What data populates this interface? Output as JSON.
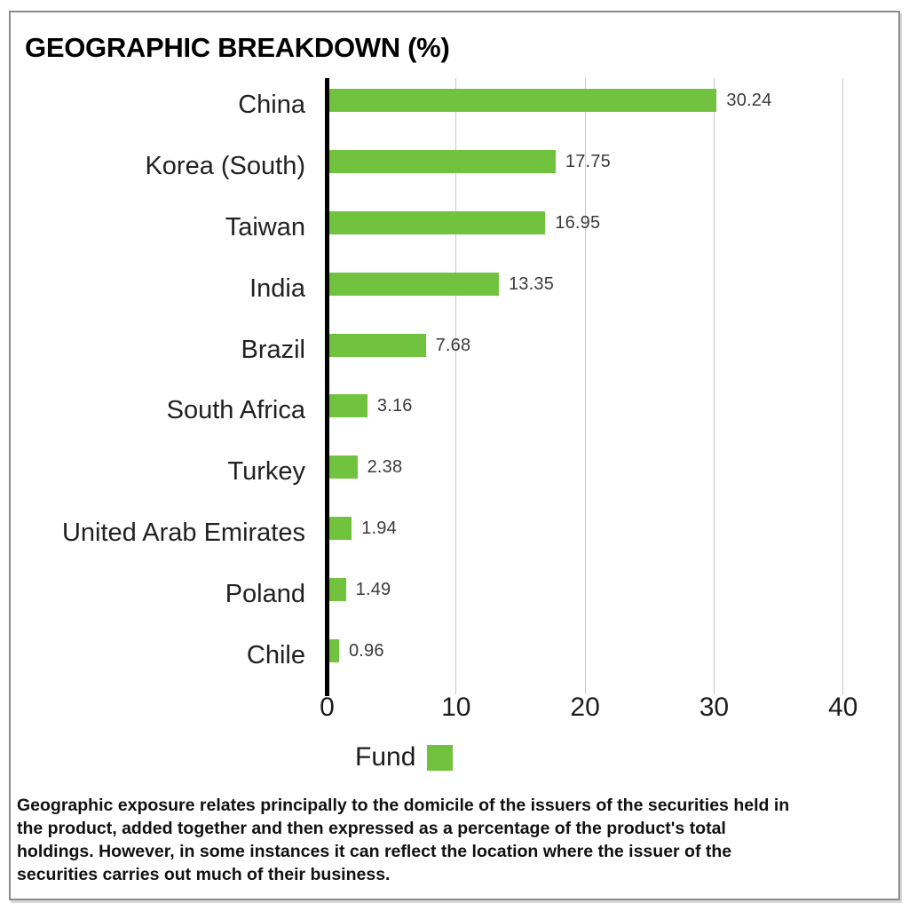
{
  "chart_data": {
    "type": "bar",
    "orientation": "horizontal",
    "title": "GEOGRAPHIC BREAKDOWN (%)",
    "categories": [
      "China",
      "Korea (South)",
      "Taiwan",
      "India",
      "Brazil",
      "South Africa",
      "Turkey",
      "United Arab Emirates",
      "Poland",
      "Chile"
    ],
    "values": [
      30.24,
      17.75,
      16.95,
      13.35,
      7.68,
      3.16,
      2.38,
      1.94,
      1.49,
      0.96
    ],
    "value_labels": [
      "30.24",
      "17.75",
      "16.95",
      "13.35",
      "7.68",
      "3.16",
      "2.38",
      "1.94",
      "1.49",
      "0.96"
    ],
    "series": [
      {
        "name": "Fund",
        "values": [
          30.24,
          17.75,
          16.95,
          13.35,
          7.68,
          3.16,
          2.38,
          1.94,
          1.49,
          0.96
        ]
      }
    ],
    "x_ticks": [
      0,
      10,
      20,
      30,
      40
    ],
    "x_tick_labels": [
      "0",
      "10",
      "20",
      "30",
      "40"
    ],
    "xlim": [
      0,
      44
    ],
    "ylabel": "",
    "xlabel": "",
    "grid": "vertical-gridlines-on",
    "legend_position": "bottom-center"
  },
  "legend": {
    "label": "Fund"
  },
  "footer": {
    "lines": [
      "Geographic exposure relates principally to the domicile of the issuers of the securities held in",
      "the product, added together and then expressed as a percentage of the product's total",
      "holdings. However, in some instances it can reflect the location where the issuer of the",
      "securities carries out much of their business."
    ]
  },
  "colors": {
    "bar_green": "#71c23e",
    "axis_black": "#000000",
    "gridline_gray": "#c9c9c9",
    "frame_border_gray": "#8a8a8a",
    "value_label_gray": "#3a3a3a"
  }
}
